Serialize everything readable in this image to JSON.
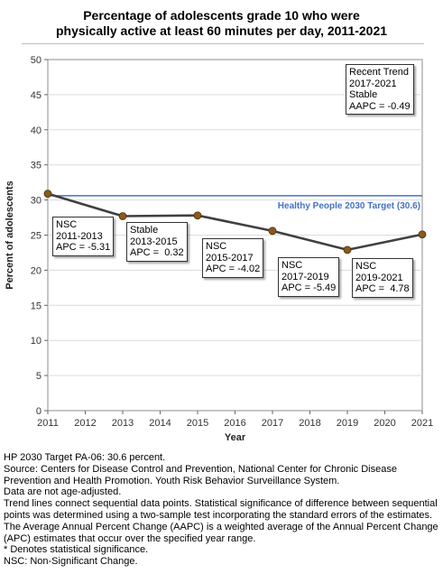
{
  "title_line1": "Percentage of adolescents grade 10 who were",
  "title_line2": "physically active at least 60 minutes per day, 2011-2021",
  "chart_data": {
    "type": "line",
    "title": "Percentage of adolescents grade 10 who were physically active at least 60 minutes per day, 2011-2021",
    "xlabel": "Year",
    "ylabel": "Percent of adolescents",
    "xlim": [
      2011,
      2021
    ],
    "ylim": [
      0,
      50
    ],
    "x_ticks": [
      2011,
      2012,
      2013,
      2014,
      2015,
      2016,
      2017,
      2018,
      2019,
      2020,
      2021
    ],
    "y_ticks": [
      0,
      5,
      10,
      15,
      20,
      25,
      30,
      35,
      40,
      45,
      50
    ],
    "grid": "horizontal",
    "series": [
      {
        "x": [
          2011,
          2013,
          2015,
          2017,
          2019,
          2021
        ],
        "y": [
          30.9,
          27.7,
          27.8,
          25.6,
          22.9,
          25.1
        ],
        "color": "#404040",
        "marker_color": "#8b5a1e"
      }
    ],
    "target": {
      "value": 30.6,
      "label": "Healthy People 2030 Target (30.6)",
      "color": "#4472c4"
    },
    "annotations": [
      {
        "lines": [
          "NSC",
          "2011-2013",
          "APC = -5.31"
        ]
      },
      {
        "lines": [
          "Stable",
          "2013-2015",
          "APC =  0.32"
        ]
      },
      {
        "lines": [
          "NSC",
          "2015-2017",
          "APC = -4.02"
        ]
      },
      {
        "lines": [
          "NSC",
          "2017-2019",
          "APC = -5.49"
        ]
      },
      {
        "lines": [
          "NSC",
          "2019-2021",
          "APC =  4.78"
        ]
      },
      {
        "lines": [
          "Recent Trend",
          "2017-2021",
          "Stable",
          "AAPC = -0.49"
        ]
      }
    ]
  },
  "notes": [
    "HP 2030 Target PA-06: 30.6 percent.",
    "Source: Centers for Disease Control and Prevention, National Center for Chronic Disease Prevention and Health Promotion. Youth Risk Behavior Surveillance System.",
    "Data are not age-adjusted.",
    "Trend lines connect sequential data points. Statistical significance of difference between sequential points was determined using a two-sample test incorporating the standard errors of the estimates.",
    "The Average Annual Percent Change (AAPC) is a weighted average of the Annual Percent Change (APC) estimates that occur over the specified year range.",
    "* Denotes statistical significance.",
    "NSC: Non-Significant Change."
  ]
}
